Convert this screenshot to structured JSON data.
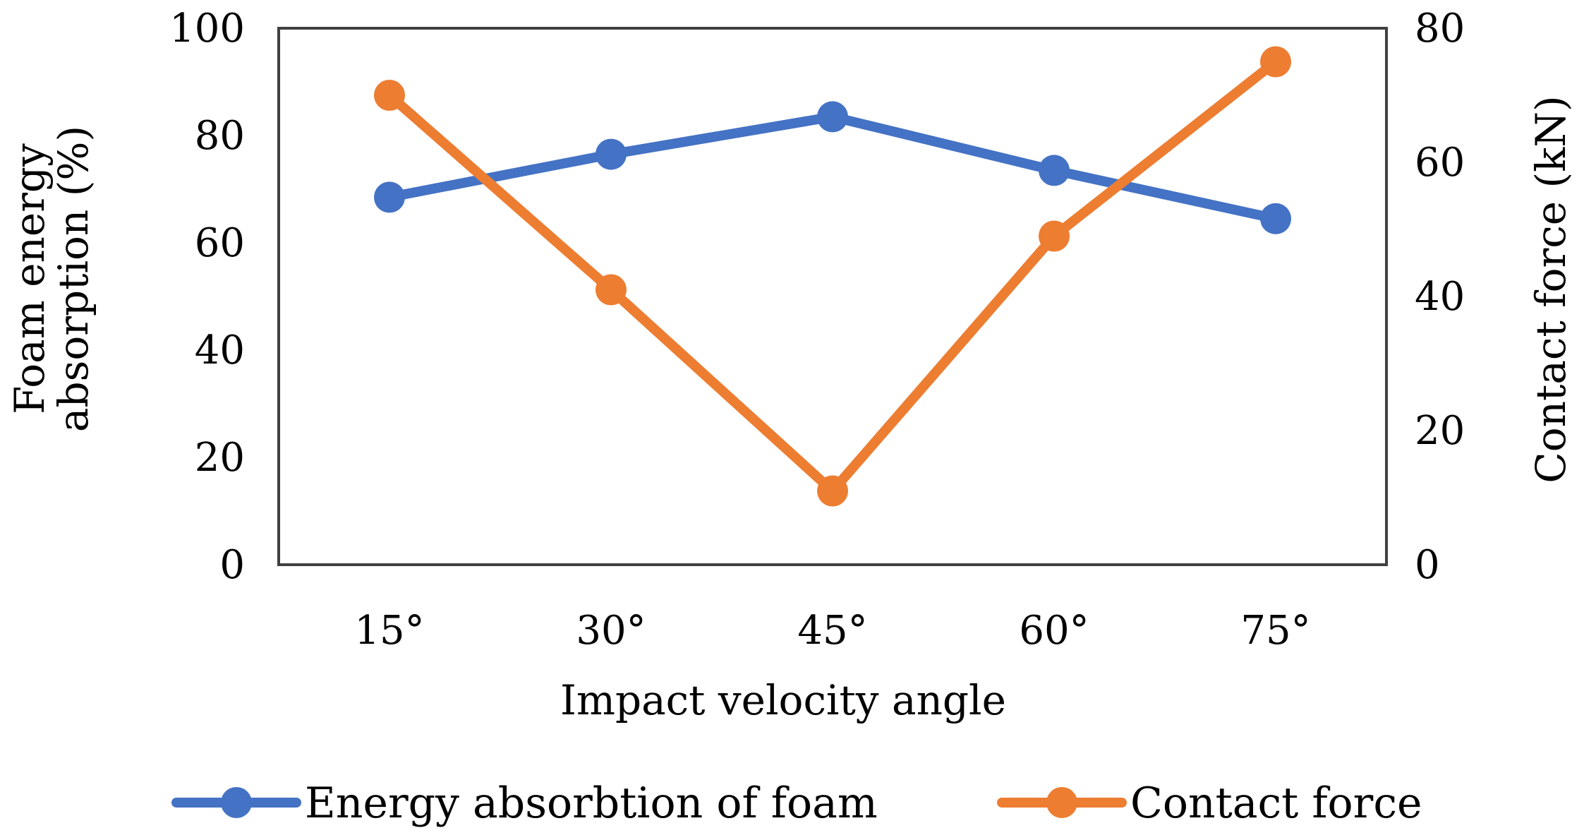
{
  "chart_data": {
    "type": "line",
    "title": "",
    "xlabel": "Impact velocity angle",
    "ylabel_left": "Foam energy absorption (%)",
    "ylabel_left_lines": [
      "Foam energy",
      "absorption (%)"
    ],
    "ylabel_right": "Contact force (kN)",
    "categories": [
      "15°",
      "30°",
      "45°",
      "60°",
      "75°"
    ],
    "ylim_left": [
      0,
      100
    ],
    "ylim_right": [
      0,
      80
    ],
    "yticks_left": [
      "0",
      "20",
      "40",
      "60",
      "80",
      "100"
    ],
    "yticks_right": [
      "0",
      "20",
      "40",
      "60",
      "80"
    ],
    "grid": false,
    "legend_position": "bottom",
    "series": [
      {
        "name": "Energy absorbtion of foam",
        "axis": "left",
        "color": "#4472C4",
        "values": [
          68.5,
          76.5,
          83.5,
          73.5,
          64.5
        ]
      },
      {
        "name": "Contact force",
        "axis": "right",
        "color": "#ED7D31",
        "values": [
          70,
          41,
          11,
          49,
          75
        ]
      }
    ]
  }
}
